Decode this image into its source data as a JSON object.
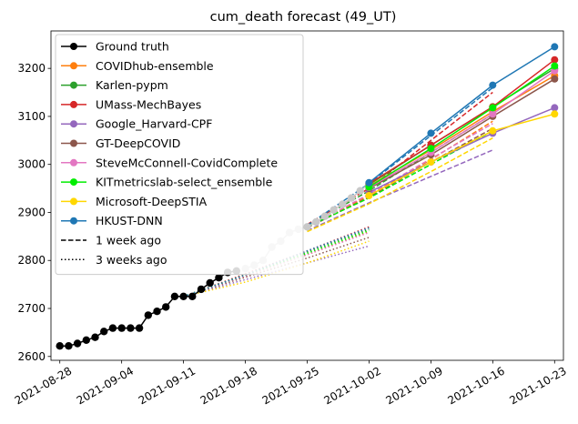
{
  "chart_data": {
    "type": "line",
    "title": "cum_death forecast (49_UT)",
    "xlabel": "",
    "ylabel": "",
    "x_ticks": [
      "2021-08-28",
      "2021-09-04",
      "2021-09-11",
      "2021-09-18",
      "2021-09-25",
      "2021-10-02",
      "2021-10-09",
      "2021-10-16",
      "2021-10-23"
    ],
    "y_ticks": [
      2600,
      2700,
      2800,
      2900,
      3000,
      3100,
      3200
    ],
    "xlim": [
      "2021-08-27",
      "2021-10-24"
    ],
    "ylim": [
      2592,
      3278
    ],
    "grid": false,
    "legend_position": "top-left",
    "ground_truth": {
      "name": "Ground truth",
      "color": "#000000",
      "x": [
        "2021-08-28",
        "2021-08-29",
        "2021-08-30",
        "2021-08-31",
        "2021-09-01",
        "2021-09-02",
        "2021-09-03",
        "2021-09-04",
        "2021-09-05",
        "2021-09-06",
        "2021-09-07",
        "2021-09-08",
        "2021-09-09",
        "2021-09-10",
        "2021-09-11",
        "2021-09-12",
        "2021-09-13",
        "2021-09-14",
        "2021-09-15",
        "2021-09-16",
        "2021-09-17"
      ],
      "y": [
        2622,
        2622,
        2627,
        2634,
        2640,
        2652,
        2659,
        2659,
        2659,
        2659,
        2686,
        2694,
        2703,
        2725,
        2725,
        2725,
        2740,
        2753,
        2764,
        2775,
        2778
      ]
    },
    "ground_truth_faded": {
      "color": "#c8c8c8",
      "x": [
        "2021-09-18",
        "2021-09-19",
        "2021-09-20",
        "2021-09-21",
        "2021-09-22",
        "2021-09-23",
        "2021-09-24",
        "2021-09-25",
        "2021-09-26",
        "2021-09-27",
        "2021-09-28",
        "2021-09-29",
        "2021-09-30",
        "2021-10-01",
        "2021-10-02"
      ],
      "y": [
        2783,
        2790,
        2800,
        2828,
        2840,
        2858,
        2865,
        2870,
        2880,
        2892,
        2905,
        2917,
        2930,
        2945,
        2960
      ]
    },
    "forecasts": [
      {
        "name": "COVIDhub-ensemble",
        "color": "#ff7f0e",
        "x": [
          "2021-10-02",
          "2021-10-09",
          "2021-10-16",
          "2021-10-23"
        ],
        "y": [
          2955,
          3030,
          3110,
          3185
        ]
      },
      {
        "name": "Karlen-pypm",
        "color": "#2ca02c",
        "x": [
          "2021-10-02",
          "2021-10-09",
          "2021-10-16",
          "2021-10-23"
        ],
        "y": [
          2958,
          3040,
          3120,
          3200
        ]
      },
      {
        "name": "UMass-MechBayes",
        "color": "#d62728",
        "x": [
          "2021-10-02",
          "2021-10-09",
          "2021-10-16",
          "2021-10-23"
        ],
        "y": [
          2960,
          3040,
          3120,
          3218
        ]
      },
      {
        "name": "Google_Harvard-CPF",
        "color": "#9467bd",
        "x": [
          "2021-10-02",
          "2021-10-09",
          "2021-10-16",
          "2021-10-23"
        ],
        "y": [
          2942,
          3005,
          3065,
          3118
        ]
      },
      {
        "name": "GT-DeepCOVID",
        "color": "#8c564b",
        "x": [
          "2021-10-02",
          "2021-10-09",
          "2021-10-16",
          "2021-10-23"
        ],
        "y": [
          2950,
          3020,
          3100,
          3178
        ]
      },
      {
        "name": "SteveMcConnell-CovidComplete",
        "color": "#e377c2",
        "x": [
          "2021-10-02",
          "2021-10-09",
          "2021-10-16",
          "2021-10-23"
        ],
        "y": [
          2952,
          3025,
          3105,
          3195
        ]
      },
      {
        "name": "KITmetricslab-select_ensemble",
        "color": "#00ee00",
        "x": [
          "2021-10-02",
          "2021-10-09",
          "2021-10-16",
          "2021-10-23"
        ],
        "y": [
          2953,
          3033,
          3118,
          3205
        ]
      },
      {
        "name": "Microsoft-DeepSTIA",
        "color": "#ffd700",
        "x": [
          "2021-10-02",
          "2021-10-09",
          "2021-10-16",
          "2021-10-23"
        ],
        "y": [
          2935,
          3005,
          3070,
          3105
        ]
      },
      {
        "name": "HKUST-DNN",
        "color": "#1f77b4",
        "x": [
          "2021-10-02",
          "2021-10-09",
          "2021-10-16",
          "2021-10-23"
        ],
        "y": [
          2962,
          3065,
          3165,
          3245
        ]
      }
    ],
    "past_forecasts_1_week": [
      {
        "color": "#ff7f0e",
        "x": [
          "2021-09-25",
          "2021-10-02",
          "2021-10-09",
          "2021-10-16"
        ],
        "y": [
          2870,
          2935,
          3010,
          3090
        ]
      },
      {
        "color": "#2ca02c",
        "x": [
          "2021-09-25",
          "2021-10-02",
          "2021-10-09",
          "2021-10-16"
        ],
        "y": [
          2872,
          2945,
          3025,
          3105
        ]
      },
      {
        "color": "#d62728",
        "x": [
          "2021-09-25",
          "2021-10-02",
          "2021-10-09",
          "2021-10-16"
        ],
        "y": [
          2875,
          2950,
          3050,
          3150
        ]
      },
      {
        "color": "#9467bd",
        "x": [
          "2021-09-25",
          "2021-10-02",
          "2021-10-09",
          "2021-10-16"
        ],
        "y": [
          2862,
          2920,
          2975,
          3030
        ]
      },
      {
        "color": "#8c564b",
        "x": [
          "2021-09-25",
          "2021-10-02",
          "2021-10-09",
          "2021-10-16"
        ],
        "y": [
          2868,
          2932,
          3005,
          3075
        ]
      },
      {
        "color": "#e377c2",
        "x": [
          "2021-09-25",
          "2021-10-02",
          "2021-10-09",
          "2021-10-16"
        ],
        "y": [
          2869,
          2938,
          3012,
          3085
        ]
      },
      {
        "color": "#00ee00",
        "x": [
          "2021-09-25",
          "2021-10-02",
          "2021-10-09",
          "2021-10-16"
        ],
        "y": [
          2870,
          2930,
          3000,
          3070
        ]
      },
      {
        "color": "#ffd700",
        "x": [
          "2021-09-25",
          "2021-10-02",
          "2021-10-09",
          "2021-10-16"
        ],
        "y": [
          2860,
          2918,
          2985,
          3055
        ]
      },
      {
        "color": "#1f77b4",
        "x": [
          "2021-09-25",
          "2021-10-02",
          "2021-10-09",
          "2021-10-16"
        ],
        "y": [
          2873,
          2960,
          3060,
          3160
        ]
      }
    ],
    "past_forecasts_3_weeks": [
      {
        "color": "#ff7f0e",
        "x": [
          "2021-09-11",
          "2021-09-18",
          "2021-09-25",
          "2021-10-02"
        ],
        "y": [
          2725,
          2768,
          2812,
          2860
        ]
      },
      {
        "color": "#2ca02c",
        "x": [
          "2021-09-11",
          "2021-09-18",
          "2021-09-25",
          "2021-10-02"
        ],
        "y": [
          2725,
          2770,
          2818,
          2865
        ]
      },
      {
        "color": "#d62728",
        "x": [
          "2021-09-11",
          "2021-09-18",
          "2021-09-25",
          "2021-10-02"
        ],
        "y": [
          2725,
          2772,
          2820,
          2870
        ]
      },
      {
        "color": "#9467bd",
        "x": [
          "2021-09-11",
          "2021-09-18",
          "2021-09-25",
          "2021-10-02"
        ],
        "y": [
          2725,
          2760,
          2795,
          2830
        ]
      },
      {
        "color": "#8c564b",
        "x": [
          "2021-09-11",
          "2021-09-18",
          "2021-09-25",
          "2021-10-02"
        ],
        "y": [
          2725,
          2765,
          2805,
          2848
        ]
      },
      {
        "color": "#e377c2",
        "x": [
          "2021-09-11",
          "2021-09-18",
          "2021-09-25",
          "2021-10-02"
        ],
        "y": [
          2725,
          2768,
          2812,
          2858
        ]
      },
      {
        "color": "#00ee00",
        "x": [
          "2021-09-11",
          "2021-09-18",
          "2021-09-25",
          "2021-10-02"
        ],
        "y": [
          2725,
          2770,
          2815,
          2862
        ]
      },
      {
        "color": "#ffd700",
        "x": [
          "2021-09-11",
          "2021-09-18",
          "2021-09-25",
          "2021-10-02"
        ],
        "y": [
          2725,
          2755,
          2795,
          2840
        ]
      },
      {
        "color": "#1f77b4",
        "x": [
          "2021-09-11",
          "2021-09-18",
          "2021-09-25",
          "2021-10-02"
        ],
        "y": [
          2725,
          2770,
          2820,
          2868
        ]
      }
    ],
    "legend": [
      {
        "label": "Ground truth",
        "color": "#000000",
        "style": "marker"
      },
      {
        "label": "COVIDhub-ensemble",
        "color": "#ff7f0e",
        "style": "marker"
      },
      {
        "label": "Karlen-pypm",
        "color": "#2ca02c",
        "style": "marker"
      },
      {
        "label": "UMass-MechBayes",
        "color": "#d62728",
        "style": "marker"
      },
      {
        "label": "Google_Harvard-CPF",
        "color": "#9467bd",
        "style": "marker"
      },
      {
        "label": "GT-DeepCOVID",
        "color": "#8c564b",
        "style": "marker"
      },
      {
        "label": "SteveMcConnell-CovidComplete",
        "color": "#e377c2",
        "style": "marker"
      },
      {
        "label": "KITmetricslab-select_ensemble",
        "color": "#00ee00",
        "style": "marker"
      },
      {
        "label": "Microsoft-DeepSTIA",
        "color": "#ffd700",
        "style": "marker"
      },
      {
        "label": "HKUST-DNN",
        "color": "#1f77b4",
        "style": "marker"
      },
      {
        "label": "1 week ago",
        "color": "#000000",
        "style": "dashed"
      },
      {
        "label": "3 weeks ago",
        "color": "#000000",
        "style": "dotted"
      }
    ]
  }
}
